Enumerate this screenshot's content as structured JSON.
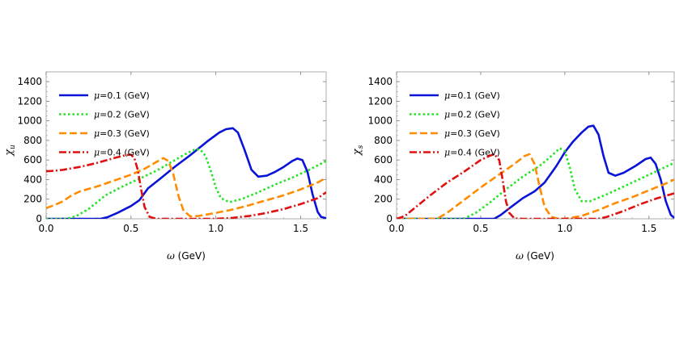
{
  "chart_data": [
    {
      "type": "line",
      "ylabel_symbol": "χ",
      "ylabel_subscript": "u",
      "xlabel_symbol": "ω",
      "xlabel_unit": " (GeV)",
      "xlim": [
        0,
        1.65
      ],
      "ylim": [
        0,
        1500
      ],
      "x_ticks": [
        0.0,
        0.5,
        1.0,
        1.5
      ],
      "x_tick_labels": [
        "0.0",
        "0.5",
        "1.0",
        "1.5"
      ],
      "y_ticks": [
        0,
        200,
        400,
        600,
        800,
        1000,
        1200,
        1400
      ],
      "y_tick_labels": [
        "0",
        "200",
        "400",
        "600",
        "800",
        "1000",
        "1200",
        "1400"
      ],
      "legend_position": "top-left",
      "series": [
        {
          "name": "μ=0.1 (GeV)",
          "legend_symbol": "μ",
          "legend_text": "=0.1 (GeV)",
          "color": "#0a14d8",
          "dash": "solid",
          "x": [
            0,
            0.32,
            0.36,
            0.42,
            0.5,
            0.55,
            0.6,
            0.68,
            0.75,
            0.85,
            0.95,
            1.02,
            1.06,
            1.1,
            1.13,
            1.17,
            1.21,
            1.25,
            1.3,
            1.35,
            1.4,
            1.45,
            1.48,
            1.51,
            1.54,
            1.57,
            1.6,
            1.62,
            1.65
          ],
          "y": [
            0,
            0,
            15,
            60,
            130,
            190,
            310,
            420,
            520,
            650,
            790,
            880,
            915,
            925,
            880,
            700,
            500,
            430,
            440,
            480,
            530,
            590,
            615,
            600,
            480,
            250,
            70,
            20,
            5
          ]
        },
        {
          "name": "μ=0.2 (GeV)",
          "legend_symbol": "μ",
          "legend_text": "=0.2 (GeV)",
          "color": "#22e322",
          "dash": "dotted",
          "x": [
            0,
            0.12,
            0.18,
            0.25,
            0.35,
            0.45,
            0.55,
            0.65,
            0.75,
            0.83,
            0.88,
            0.91,
            0.94,
            0.97,
            1.0,
            1.03,
            1.08,
            1.15,
            1.25,
            1.35,
            1.45,
            1.55,
            1.65
          ],
          "y": [
            0,
            0,
            30,
            100,
            240,
            330,
            410,
            490,
            590,
            670,
            710,
            705,
            640,
            490,
            320,
            210,
            170,
            200,
            270,
            350,
            420,
            500,
            590
          ]
        },
        {
          "name": "μ=0.3 (GeV)",
          "legend_symbol": "μ",
          "legend_text": "=0.3 (GeV)",
          "color": "#ff8c00",
          "dash": "dashed",
          "x": [
            0,
            0.05,
            0.1,
            0.15,
            0.2,
            0.3,
            0.4,
            0.5,
            0.58,
            0.65,
            0.69,
            0.72,
            0.75,
            0.78,
            0.81,
            0.85,
            0.9,
            1.0,
            1.1,
            1.2,
            1.3,
            1.4,
            1.5,
            1.6,
            1.65
          ],
          "y": [
            110,
            140,
            180,
            240,
            280,
            330,
            390,
            450,
            510,
            580,
            620,
            590,
            450,
            230,
            80,
            25,
            30,
            60,
            95,
            140,
            190,
            240,
            300,
            370,
            420
          ]
        },
        {
          "name": "μ=0.4 (GeV)",
          "legend_symbol": "μ",
          "legend_text": "=0.4 (GeV)",
          "color": "#e01010",
          "dash": "dashdot",
          "x": [
            0,
            0.05,
            0.1,
            0.2,
            0.3,
            0.4,
            0.47,
            0.5,
            0.52,
            0.54,
            0.56,
            0.58,
            0.61,
            0.65,
            0.8,
            1.0,
            1.1,
            1.2,
            1.3,
            1.4,
            1.5,
            1.6,
            1.65
          ],
          "y": [
            485,
            490,
            500,
            530,
            570,
            620,
            650,
            655,
            620,
            500,
            300,
            120,
            20,
            0,
            0,
            0,
            10,
            30,
            60,
            100,
            150,
            210,
            270
          ]
        }
      ]
    },
    {
      "type": "line",
      "ylabel_symbol": "χ",
      "ylabel_subscript": "s",
      "xlabel_symbol": "ω",
      "xlabel_unit": " (GeV)",
      "xlim": [
        0,
        1.65
      ],
      "ylim": [
        0,
        1500
      ],
      "x_ticks": [
        0.0,
        0.5,
        1.0,
        1.5
      ],
      "x_tick_labels": [
        "0.0",
        "0.5",
        "1.0",
        "1.5"
      ],
      "y_ticks": [
        0,
        200,
        400,
        600,
        800,
        1000,
        1200,
        1400
      ],
      "y_tick_labels": [
        "0",
        "200",
        "400",
        "600",
        "800",
        "1000",
        "1200",
        "1400"
      ],
      "legend_position": "top-left",
      "series": [
        {
          "name": "μ=0.1 (GeV)",
          "legend_symbol": "μ",
          "legend_text": "=0.1 (GeV)",
          "color": "#0a14d8",
          "dash": "solid",
          "x": [
            0,
            0.58,
            0.62,
            0.68,
            0.75,
            0.82,
            0.88,
            0.95,
            1.0,
            1.05,
            1.1,
            1.14,
            1.17,
            1.2,
            1.23,
            1.26,
            1.3,
            1.35,
            1.42,
            1.48,
            1.51,
            1.54,
            1.57,
            1.6,
            1.63,
            1.65
          ],
          "y": [
            0,
            0,
            40,
            120,
            210,
            280,
            370,
            540,
            680,
            790,
            880,
            940,
            950,
            860,
            640,
            470,
            440,
            470,
            540,
            610,
            625,
            560,
            400,
            180,
            40,
            10
          ]
        },
        {
          "name": "μ=0.2 (GeV)",
          "legend_symbol": "μ",
          "legend_text": "=0.2 (GeV)",
          "color": "#22e322",
          "dash": "dotted",
          "x": [
            0,
            0.4,
            0.47,
            0.55,
            0.65,
            0.75,
            0.85,
            0.92,
            0.97,
            1.0,
            1.03,
            1.06,
            1.1,
            1.15,
            1.25,
            1.35,
            1.45,
            1.55,
            1.65
          ],
          "y": [
            0,
            0,
            60,
            160,
            300,
            430,
            540,
            640,
            720,
            690,
            520,
            300,
            180,
            180,
            250,
            330,
            410,
            490,
            570
          ]
        },
        {
          "name": "μ=0.3 (GeV)",
          "legend_symbol": "μ",
          "legend_text": "=0.3 (GeV)",
          "color": "#ff8c00",
          "dash": "dashed",
          "x": [
            0,
            0.24,
            0.3,
            0.4,
            0.5,
            0.6,
            0.7,
            0.76,
            0.79,
            0.82,
            0.85,
            0.88,
            0.92,
            0.96,
            1.0,
            1.1,
            1.2,
            1.3,
            1.4,
            1.5,
            1.6,
            1.65
          ],
          "y": [
            0,
            0,
            60,
            190,
            320,
            440,
            560,
            640,
            660,
            560,
            330,
            120,
            20,
            0,
            0,
            30,
            90,
            160,
            220,
            290,
            360,
            400
          ]
        },
        {
          "name": "μ=0.4 (GeV)",
          "legend_symbol": "μ",
          "legend_text": "=0.4 (GeV)",
          "color": "#e01010",
          "dash": "dashdot",
          "x": [
            0,
            0.05,
            0.1,
            0.2,
            0.3,
            0.4,
            0.5,
            0.55,
            0.58,
            0.61,
            0.63,
            0.65,
            0.67,
            0.7,
            0.75,
            0.9,
            1.1,
            1.2,
            1.25,
            1.35,
            1.45,
            1.55,
            1.65
          ],
          "y": [
            0,
            30,
            100,
            240,
            370,
            480,
            600,
            640,
            660,
            600,
            400,
            180,
            60,
            5,
            0,
            0,
            0,
            0,
            20,
            80,
            150,
            210,
            260
          ]
        }
      ]
    }
  ]
}
